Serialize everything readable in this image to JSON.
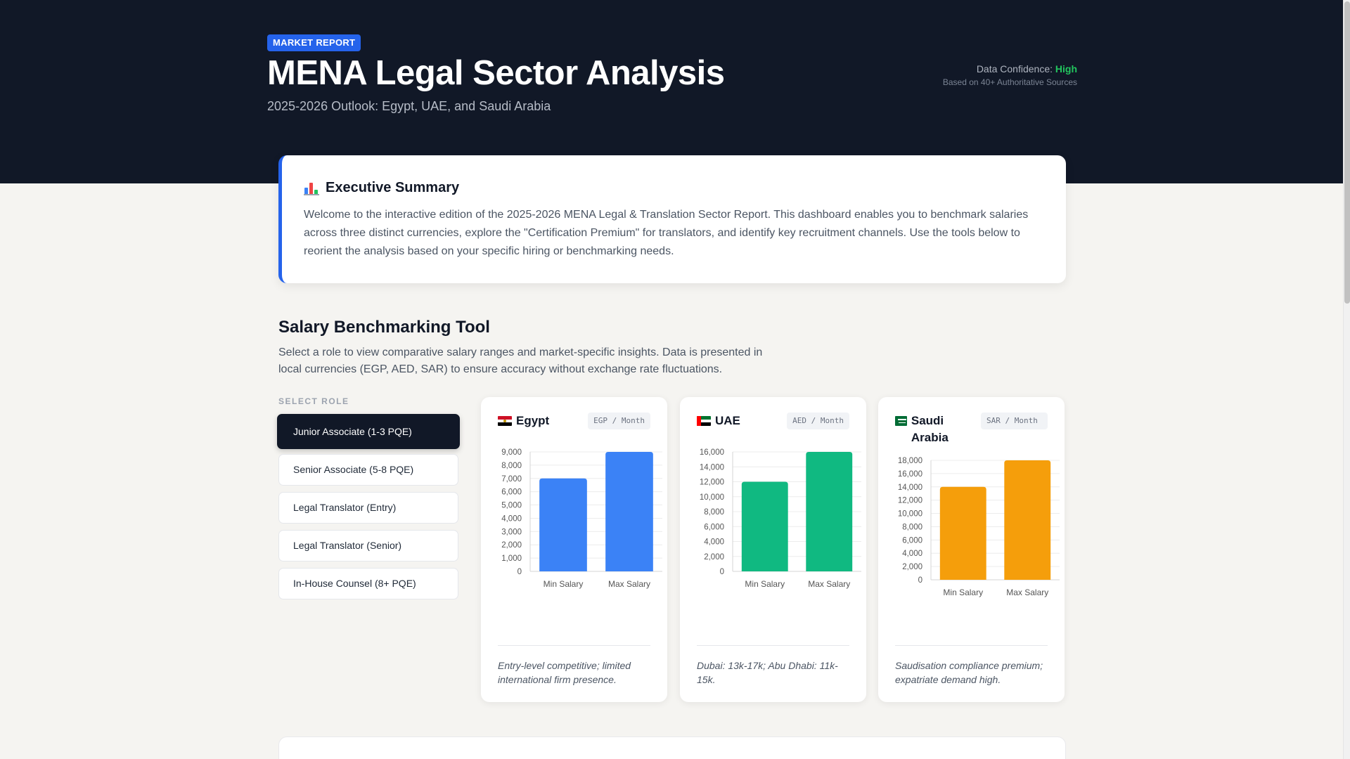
{
  "header": {
    "badge": "MARKET REPORT",
    "title": "MENA Legal Sector Analysis",
    "subtitle": "2025-2026 Outlook: Egypt, UAE, and Saudi Arabia",
    "confidence_label": "Data Confidence:",
    "confidence_value": "High",
    "confidence_sub": "Based on 40+ Authoritative Sources"
  },
  "summary": {
    "icon": "bar-chart-icon",
    "title": "Executive Summary",
    "text": "Welcome to the interactive edition of the 2025-2026 MENA Legal & Translation Sector Report. This dashboard enables you to benchmark salaries across three distinct currencies, explore the \"Certification Premium\" for translators, and identify key recruitment channels. Use the tools below to reorient the analysis based on your specific hiring or benchmarking needs."
  },
  "tool": {
    "title": "Salary Benchmarking Tool",
    "description": "Select a role to view comparative salary ranges and market-specific insights. Data is presented in local currencies (EGP, AED, SAR) to ensure accuracy without exchange rate fluctuations.",
    "select_label": "SELECT ROLE",
    "roles": [
      "Junior Associate (1-3 PQE)",
      "Senior Associate (5-8 PQE)",
      "Legal Translator (Entry)",
      "Legal Translator (Senior)",
      "In-House Counsel (8+ PQE)"
    ],
    "active_role": 0
  },
  "countries": [
    {
      "name": "Egypt",
      "currency": "EGP / Month",
      "note": "Entry-level competitive; limited international firm presence.",
      "color": "#3b82f6"
    },
    {
      "name": "UAE",
      "currency": "AED / Month",
      "note": "Dubai: 13k-17k; Abu Dhabi: 11k-15k.",
      "color": "#10b981"
    },
    {
      "name": "Saudi Arabia",
      "currency": "SAR / Month",
      "note": "Saudisation compliance premium; expatriate demand high.",
      "color": "#f59e0b"
    }
  ],
  "chart_data": [
    {
      "type": "bar",
      "categories": [
        "Min Salary",
        "Max Salary"
      ],
      "values": [
        7000,
        9000
      ],
      "ylim": [
        0,
        9000
      ],
      "yticks": [
        0,
        1000,
        2000,
        3000,
        4000,
        5000,
        6000,
        7000,
        8000,
        9000
      ]
    },
    {
      "type": "bar",
      "categories": [
        "Min Salary",
        "Max Salary"
      ],
      "values": [
        12000,
        16000
      ],
      "ylim": [
        0,
        16000
      ],
      "yticks": [
        0,
        2000,
        4000,
        6000,
        8000,
        10000,
        12000,
        14000,
        16000
      ]
    },
    {
      "type": "bar",
      "categories": [
        "Min Salary",
        "Max Salary"
      ],
      "values": [
        14000,
        18000
      ],
      "ylim": [
        0,
        18000
      ],
      "yticks": [
        0,
        2000,
        4000,
        6000,
        8000,
        10000,
        12000,
        14000,
        16000,
        18000
      ]
    }
  ]
}
